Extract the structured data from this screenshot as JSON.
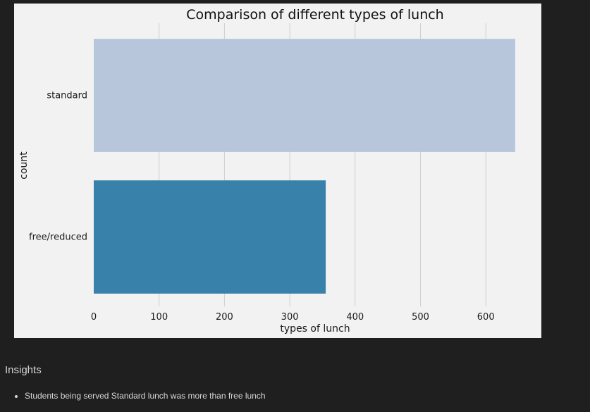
{
  "chart_data": {
    "type": "bar",
    "orientation": "horizontal",
    "title": "Comparison of different types of lunch",
    "xlabel": "types of lunch",
    "ylabel": "count",
    "categories": [
      "standard",
      "free/reduced"
    ],
    "values": [
      645,
      355
    ],
    "xlim": [
      0,
      700
    ],
    "xticks": [
      0,
      100,
      200,
      300,
      400,
      500,
      600
    ],
    "colors": [
      "#b8c6dc",
      "#3881ab"
    ],
    "grid": "vertical",
    "background": "#f2f2f2"
  },
  "insights": {
    "heading": "Insights",
    "items": [
      "Students being served Standard lunch was more than free lunch"
    ]
  }
}
